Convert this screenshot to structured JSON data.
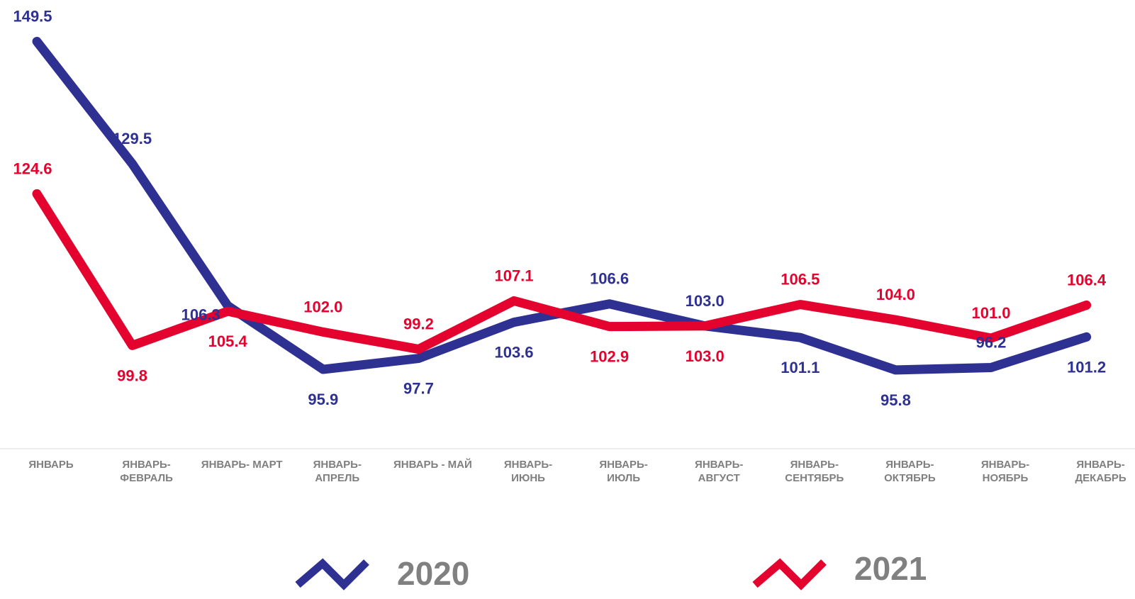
{
  "chart_data": {
    "type": "line",
    "categories": [
      "ЯНВАРЬ",
      "ЯНВАРЬ-\nФЕВРАЛЬ",
      "ЯНВАРЬ- МАРТ",
      "ЯНВАРЬ-\nАПРЕЛЬ",
      "ЯНВАРЬ - МАЙ",
      "ЯНВАРЬ-\nИЮНЬ",
      "ЯНВАРЬ-\nИЮЛЬ",
      "ЯНВАРЬ-\nАВГУСТ",
      "ЯНВАРЬ-\nСЕНТЯБРЬ",
      "ЯНВАРЬ-\nОКТЯБРЬ",
      "ЯНВАРЬ-\nНОЯБРЬ",
      "ЯНВАРЬ-\nДЕКАБРЬ"
    ],
    "series": [
      {
        "name": "2020",
        "color": "#2e3192",
        "values": [
          149.5,
          129.5,
          106.3,
          95.9,
          97.7,
          103.6,
          106.6,
          103.0,
          101.1,
          95.8,
          96.2,
          101.2
        ],
        "labels": [
          "149.5",
          "129.5",
          "106.3",
          "95.9",
          "97.7",
          "103.6",
          "106.6",
          "103.0",
          "101.1",
          "95.8",
          "96.2",
          "101.2"
        ]
      },
      {
        "name": "2021",
        "color": "#e4032e",
        "values": [
          124.6,
          99.8,
          105.4,
          102.0,
          99.2,
          107.1,
          102.9,
          103.0,
          106.5,
          104.0,
          101.0,
          106.4
        ],
        "labels": [
          "124.6",
          "99.8",
          "105.4",
          "102.0",
          "99.2",
          "107.1",
          "102.9",
          "103.0",
          "106.5",
          "104.0",
          "101.0",
          "106.4"
        ]
      }
    ],
    "title": "",
    "xlabel": "",
    "ylabel": "",
    "grid": false,
    "legend": "bottom"
  }
}
